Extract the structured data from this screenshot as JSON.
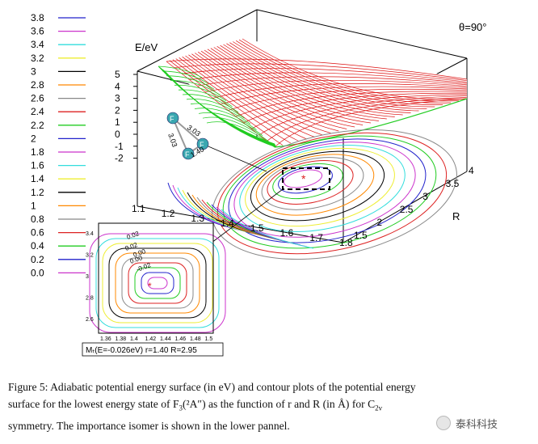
{
  "chart_data": [
    {
      "type": "surface",
      "annotation": "θ=90°",
      "zlabel": "E/eV",
      "ylabel": "R",
      "xlabel": "",
      "z_ticks": [
        "5",
        "4",
        "3",
        "2",
        "1",
        "0",
        "-1",
        "-2"
      ],
      "x_ticks": [
        "1.1",
        "1.2",
        "1.3",
        "1.4",
        "1.5",
        "1.6",
        "1.7",
        "1.8"
      ],
      "y_ticks": [
        "1.5",
        "2",
        "2.5",
        "3",
        "3.5",
        "4"
      ],
      "xlim": [
        1.1,
        1.8
      ],
      "ylim": [
        1.5,
        4
      ],
      "zlim": [
        -2,
        5
      ],
      "minimum": {
        "r": 1.4,
        "R": 2.95,
        "E": -0.026
      },
      "legend": [
        {
          "label": "3.8",
          "color": "#2222cc"
        },
        {
          "label": "3.6",
          "color": "#cc33cc"
        },
        {
          "label": "3.4",
          "color": "#33dddd"
        },
        {
          "label": "3.2",
          "color": "#eeee33"
        },
        {
          "label": "3",
          "color": "#000000"
        },
        {
          "label": "2.8",
          "color": "#ff8800"
        },
        {
          "label": "2.6",
          "color": "#888888"
        },
        {
          "label": "2.4",
          "color": "#dd2222"
        },
        {
          "label": "2.2",
          "color": "#22cc22"
        },
        {
          "label": "2",
          "color": "#2222cc"
        },
        {
          "label": "1.8",
          "color": "#cc33cc"
        },
        {
          "label": "1.6",
          "color": "#33dddd"
        },
        {
          "label": "1.4",
          "color": "#eeee33"
        },
        {
          "label": "1.2",
          "color": "#000000"
        },
        {
          "label": "1",
          "color": "#ff8800"
        },
        {
          "label": "0.8",
          "color": "#888888"
        },
        {
          "label": "0.6",
          "color": "#dd2222"
        },
        {
          "label": "0.4",
          "color": "#22cc22"
        },
        {
          "label": "0.2",
          "color": "#2222cc"
        },
        {
          "label": "0.0",
          "color": "#cc33cc"
        }
      ],
      "molecule": {
        "atom_label": "F",
        "bond_labels": [
          "3.03",
          "3.03",
          "1.40"
        ]
      }
    },
    {
      "type": "contour",
      "x_ticks": [
        "1.36",
        "1.38",
        "1.4",
        "1.42",
        "1.44",
        "1.46",
        "1.48",
        "1.5"
      ],
      "y_ticks": [
        "3.4",
        "3.2",
        "3",
        "2.8",
        "2.6"
      ],
      "xlim": [
        1.35,
        1.5
      ],
      "ylim": [
        2.55,
        3.45
      ],
      "contour_labels": [
        "0.02",
        "0.02",
        "0.00",
        "0.00",
        "-0.02"
      ],
      "minimum": {
        "r": 1.4,
        "R": 2.95,
        "E": -0.026
      },
      "label": "Mₜ(E=-0.026eV) r=1.40 R=2.95"
    }
  ],
  "caption": {
    "line1": "Figure 5: Adiabatic potential energy surface (in eV) and contour plots of the potential energy",
    "line2_pre": "surface for the lowest energy state of F",
    "line2_sub": "3",
    "line2_state": "(²A″)",
    "line2_post": " as the function of r and R (in Å) for C",
    "line2_sym_sub": "2v",
    "line3": "symmetry. The importance isomer is shown in the lower pannel."
  },
  "watermark": "泰科科技"
}
